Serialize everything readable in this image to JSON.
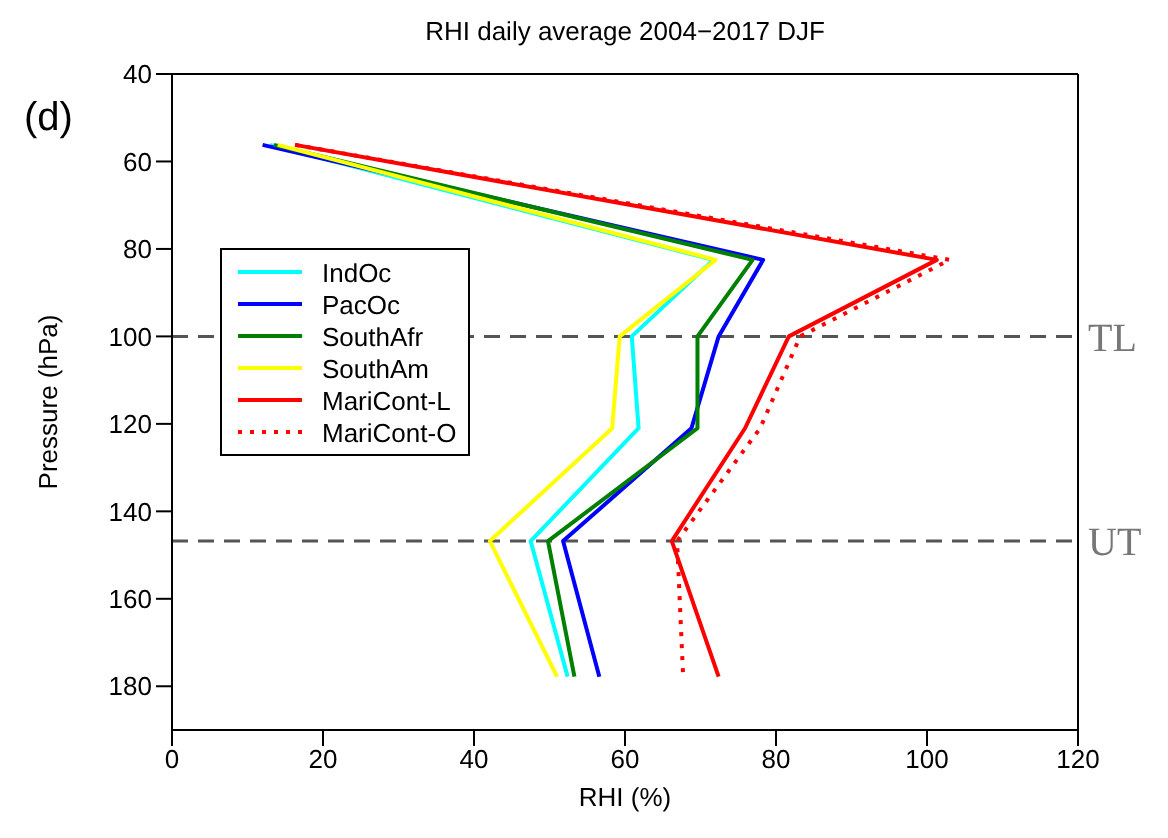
{
  "chart_data": {
    "type": "line",
    "title": "RHI daily average 2004−2017 DJF",
    "xlabel": "RHI (%)",
    "ylabel": "Pressure (hPa)",
    "annotations": [
      "(d)"
    ],
    "xlim": [
      0,
      120
    ],
    "xticks": [
      0,
      20,
      40,
      60,
      80,
      100,
      120
    ],
    "ylim": [
      190,
      40
    ],
    "yticks": [
      40,
      60,
      80,
      100,
      120,
      140,
      160,
      180
    ],
    "grid": false,
    "legend": "top left",
    "line_style": "solid",
    "series": [
      {
        "name": "IndOc",
        "color": "#00ffff",
        "x": [
          13,
          71.7,
          60.9,
          61.8,
          47.5,
          52.4
        ],
        "values": [
          56.2,
          82.5,
          100,
          121,
          146.8,
          177.8
        ]
      },
      {
        "name": "PacOc",
        "color": "#0000ff",
        "x": [
          12,
          78.3,
          72.4,
          68.8,
          51.8,
          56.6
        ],
        "values": [
          56.2,
          82.5,
          100,
          121,
          146.8,
          177.8
        ]
      },
      {
        "name": "SouthAfr",
        "color": "#008000",
        "x": [
          13.5,
          76.9,
          69.6,
          69.6,
          49.8,
          53.3
        ],
        "values": [
          56.2,
          82.5,
          100,
          121,
          146.8,
          177.8
        ]
      },
      {
        "name": "SouthAm",
        "color": "#ffff00",
        "x": [
          14,
          72,
          59.3,
          58.3,
          42.1,
          51
        ],
        "values": [
          56.2,
          82.5,
          100,
          121,
          146.8,
          177.8
        ]
      },
      {
        "name": "MariCont-L",
        "color": "#ff0000",
        "x": [
          16.3,
          101.3,
          81.7,
          75.9,
          66.2,
          72.4
        ],
        "values": [
          56.2,
          82.5,
          100,
          121,
          146.8,
          177.8
        ]
      },
      {
        "name": "MariCont-O",
        "color": "#ff0000",
        "line_style": "dotted",
        "x": [
          16.3,
          103,
          83.2,
          77.9,
          66.9,
          67.7
        ],
        "values": [
          56.2,
          82.5,
          100,
          121,
          146.8,
          177.8
        ]
      }
    ],
    "ref_lines": [
      {
        "axis": "y",
        "value": 100,
        "label": "TL",
        "color": "#555555",
        "line_style": "dashed"
      },
      {
        "axis": "y",
        "value": 146.8,
        "label": "UT",
        "color": "#555555",
        "line_style": "dashed"
      }
    ]
  }
}
